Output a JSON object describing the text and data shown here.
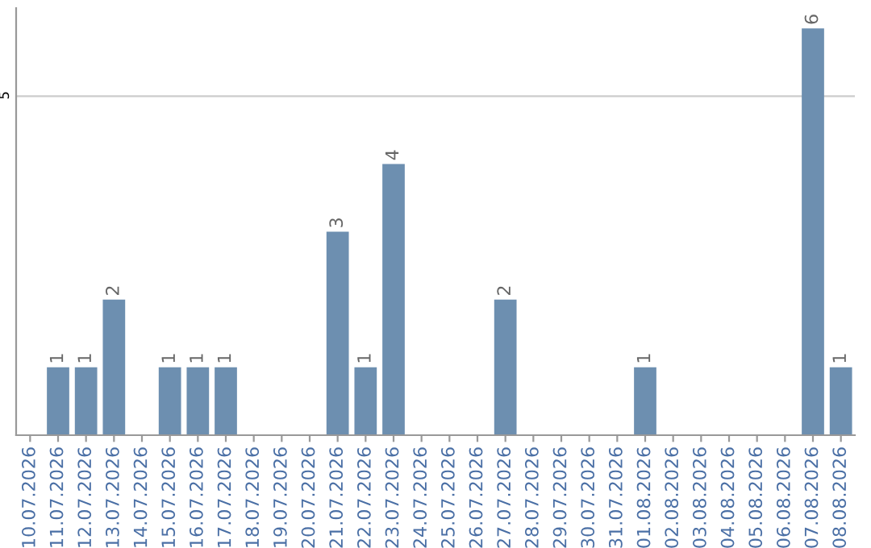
{
  "chart_data": {
    "type": "bar",
    "categories": [
      "10.07.2026",
      "11.07.2026",
      "12.07.2026",
      "13.07.2026",
      "14.07.2026",
      "15.07.2026",
      "16.07.2026",
      "17.07.2026",
      "18.07.2026",
      "19.07.2026",
      "20.07.2026",
      "21.07.2026",
      "22.07.2026",
      "23.07.2026",
      "24.07.2026",
      "25.07.2026",
      "26.07.2026",
      "27.07.2026",
      "28.07.2026",
      "29.07.2026",
      "30.07.2026",
      "31.07.2026",
      "01.08.2026",
      "02.08.2026",
      "03.08.2026",
      "04.08.2026",
      "05.08.2026",
      "06.08.2026",
      "07.08.2026",
      "08.08.2026"
    ],
    "values": [
      0,
      1,
      1,
      2,
      0,
      1,
      1,
      1,
      0,
      0,
      0,
      3,
      1,
      4,
      0,
      0,
      0,
      2,
      0,
      0,
      0,
      0,
      1,
      0,
      0,
      0,
      0,
      0,
      6,
      1
    ],
    "value_labels": [
      null,
      "1",
      "1",
      "2",
      null,
      "1",
      "1",
      "1",
      null,
      null,
      null,
      "3",
      "1",
      "4",
      null,
      null,
      null,
      "2",
      null,
      null,
      null,
      null,
      "1",
      null,
      null,
      null,
      null,
      null,
      "6",
      "1"
    ],
    "color": "#6d8fb0",
    "ylim": [
      0,
      6.3
    ],
    "yticks": [
      5
    ],
    "grid": "y"
  }
}
